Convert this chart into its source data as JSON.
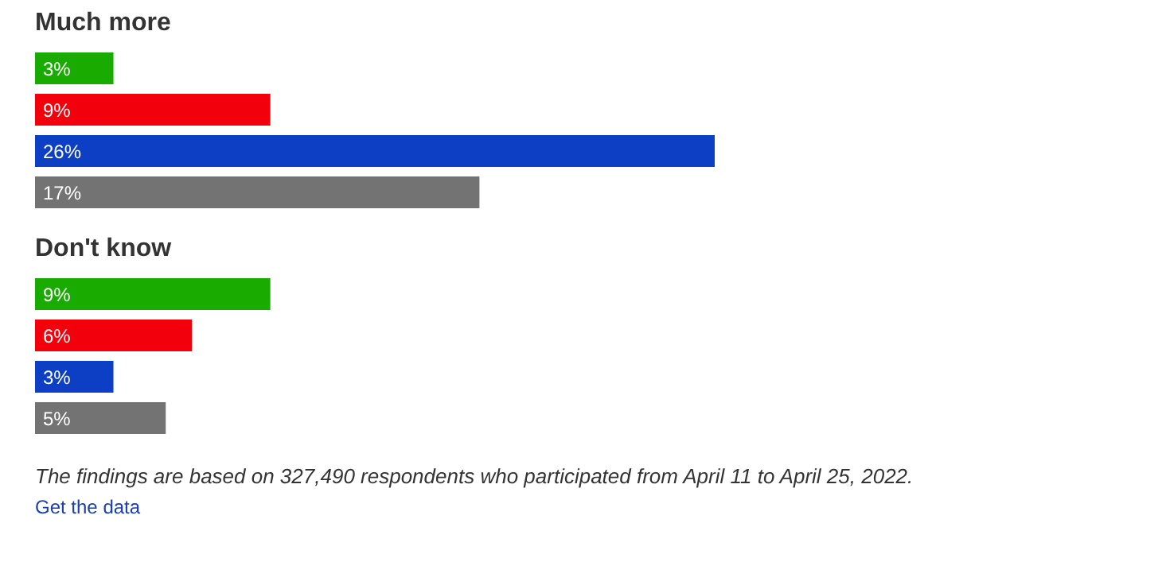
{
  "chart_data": [
    {
      "type": "bar",
      "orientation": "horizontal",
      "title": "Much more",
      "categories": [
        null,
        null,
        null,
        null
      ],
      "values": [
        3,
        9,
        26,
        17
      ],
      "colors": [
        "#1aab00",
        "#f2000b",
        "#0d3fc4",
        "#737373"
      ],
      "value_labels": [
        "3%",
        "9%",
        "26%",
        "17%"
      ],
      "tick_labels": false
    },
    {
      "type": "bar",
      "orientation": "horizontal",
      "title": "Don't know",
      "categories": [
        null,
        null,
        null,
        null
      ],
      "values": [
        9,
        6,
        3,
        5
      ],
      "colors": [
        "#1aab00",
        "#f2000b",
        "#0d3fc4",
        "#737373"
      ],
      "value_labels": [
        "9%",
        "6%",
        "3%",
        "5%"
      ],
      "tick_labels": false,
      "annotations": [
        "The findings are based on 327,490 respondents who participated from April 11 to April 25, 2022.",
        "Get the data"
      ]
    }
  ]
}
